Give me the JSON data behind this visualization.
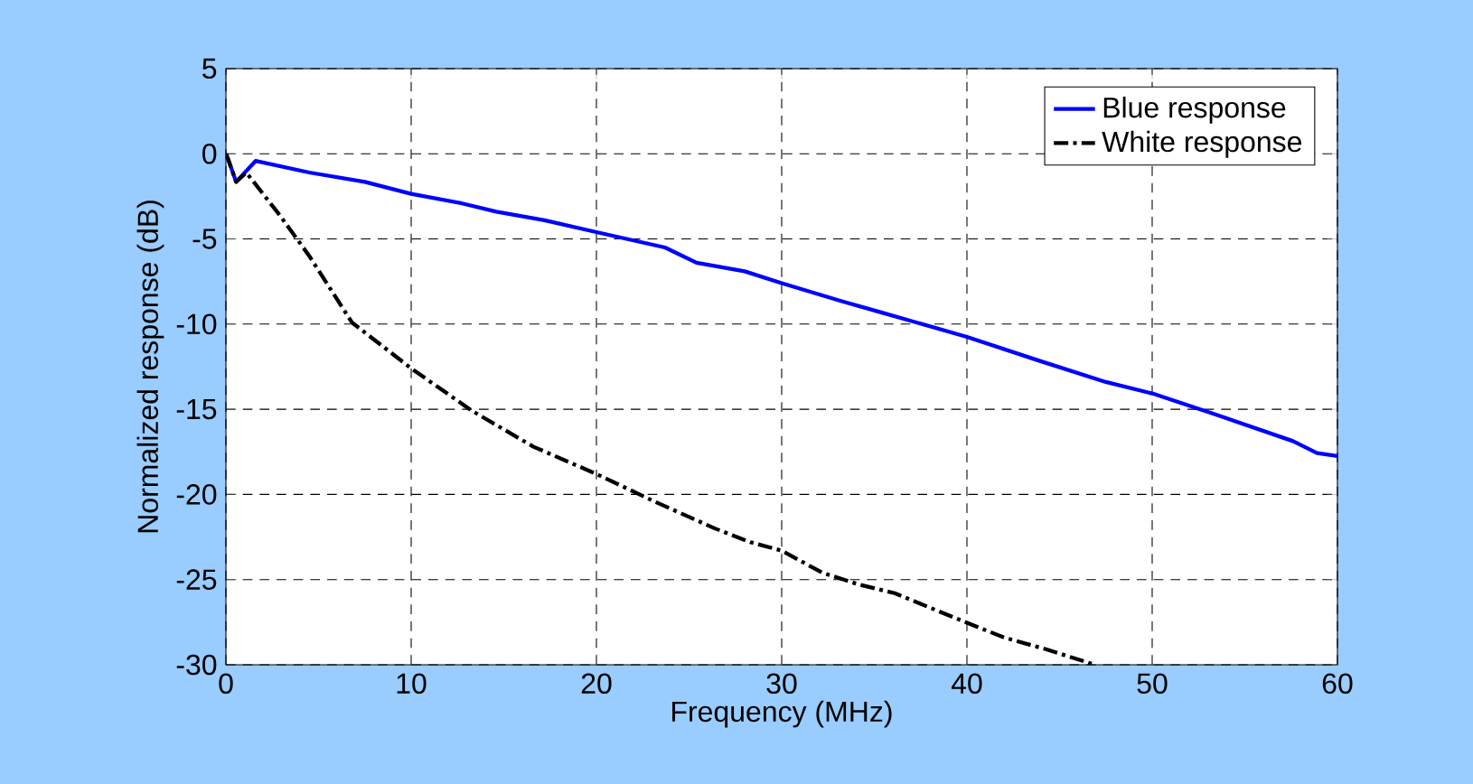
{
  "chart_data": {
    "type": "line",
    "xlabel": "Frequency (MHz)",
    "ylabel": "Normalized response (dB)",
    "xlim": [
      0,
      60
    ],
    "ylim": [
      -30,
      5
    ],
    "xticks": [
      0,
      10,
      20,
      30,
      40,
      50,
      60
    ],
    "yticks": [
      -30,
      -25,
      -20,
      -15,
      -10,
      -5,
      0,
      5
    ],
    "grid": true,
    "legend": "top right",
    "series": [
      {
        "name": "Blue response",
        "color": "#0000ff",
        "line_style": "solid",
        "x": [
          0,
          0.13,
          0.55,
          1.6,
          4.5,
          7.5,
          10,
          12.7,
          14.6,
          17.2,
          20,
          23.7,
          25.4,
          28,
          30,
          33.2,
          35.5,
          40,
          43.9,
          47.5,
          50,
          53.4,
          57.6,
          58.9,
          60
        ],
        "values": [
          0,
          -0.35,
          -1.65,
          -0.42,
          -1.1,
          -1.65,
          -2.35,
          -2.9,
          -3.4,
          -3.9,
          -4.6,
          -5.5,
          -6.4,
          -6.9,
          -7.6,
          -8.64,
          -9.35,
          -10.75,
          -12.15,
          -13.4,
          -14.07,
          -15.3,
          -16.87,
          -17.57,
          -17.75
        ]
      },
      {
        "name": "White response",
        "color": "#000000",
        "line_style": "dashdot",
        "x": [
          0,
          0.13,
          0.55,
          1.1,
          2.9,
          4.5,
          6.8,
          10,
          13.3,
          16.6,
          20,
          23.1,
          26.4,
          28.3,
          30,
          32.2,
          34.2,
          36.1,
          39.7,
          42,
          44.3,
          46.9
        ],
        "values": [
          0,
          -0.35,
          -1.65,
          -1.1,
          -3.6,
          -6.0,
          -9.9,
          -12.6,
          -15.1,
          -17.2,
          -18.8,
          -20.4,
          -22,
          -22.8,
          -23.3,
          -24.6,
          -25.3,
          -25.8,
          -27.4,
          -28.4,
          -29.1,
          -30.0
        ]
      }
    ]
  }
}
